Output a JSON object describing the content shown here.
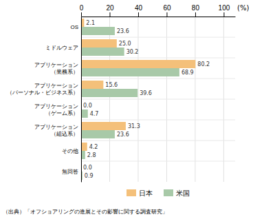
{
  "chart_data": {
    "type": "bar",
    "orientation": "horizontal",
    "categories": [
      "OS",
      "ミドルウェア",
      "アプリケーション\n（業務系）",
      "アプリケーション\n（パーソナル・ビジネス系）",
      "アプリケーション\n（ゲーム系）",
      "アプリケーション\n（組込系）",
      "その他",
      "無回答"
    ],
    "series": [
      {
        "name": "日本",
        "color": "#F4C07A",
        "values": [
          2.1,
          25.0,
          80.2,
          15.6,
          0.0,
          31.3,
          4.2,
          0.0
        ],
        "value_labels": [
          "2.1",
          "25.0",
          "80.2",
          "15.6",
          "0.0",
          "31.3",
          "4.2",
          "0.0"
        ]
      },
      {
        "name": "米国",
        "color": "#A8C9A8",
        "values": [
          23.6,
          30.2,
          68.9,
          39.6,
          4.7,
          23.6,
          2.8,
          0.9
        ],
        "value_labels": [
          "23.6",
          "30.2",
          "68.9",
          "39.6",
          "4.7",
          "23.6",
          "2.8",
          "0.9"
        ]
      }
    ],
    "xlim": [
      0,
      108
    ],
    "xticks": [
      0,
      20,
      40,
      60,
      80,
      100
    ],
    "x_label": "(%)",
    "caption": "（出典）「オフショアリングの進展とその影響に関する調査研究」",
    "grid": true,
    "legend": "bottom",
    "data_labels": true
  }
}
